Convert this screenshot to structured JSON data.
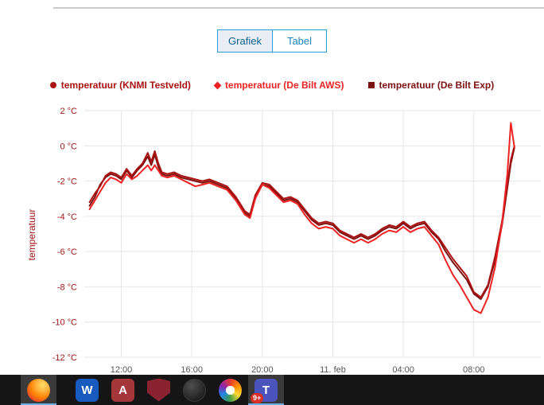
{
  "page": {
    "view_toggle": {
      "grafiek": "Grafiek",
      "tabel": "Tabel"
    },
    "accent_blue": "#259fd9"
  },
  "chart_data": {
    "type": "line",
    "title": "",
    "ylabel": "temperatuur",
    "ytick_color": "#a31515",
    "xtick_color": "#555555",
    "grid_color": "#e6e6e6",
    "legend_position": "top",
    "grid": true,
    "xlim": [
      9.9,
      35.8
    ],
    "ylim": [
      -12,
      2
    ],
    "x_unit": "hour of day (24 = 11 feb 00:00)",
    "yticks": [
      {
        "value": 2,
        "label": "2 °C"
      },
      {
        "value": 0,
        "label": "0 °C"
      },
      {
        "value": -2,
        "label": "-2 °C"
      },
      {
        "value": -4,
        "label": "-4 °C"
      },
      {
        "value": -6,
        "label": "-6 °C"
      },
      {
        "value": -8,
        "label": "-8 °C"
      },
      {
        "value": -10,
        "label": "-10 °C"
      },
      {
        "value": -12,
        "label": "-12 °C"
      }
    ],
    "xticks": [
      {
        "value": 12,
        "label": "12:00"
      },
      {
        "value": 16,
        "label": "16:00"
      },
      {
        "value": 20,
        "label": "20:00"
      },
      {
        "value": 24,
        "label": "11. feb"
      },
      {
        "value": 28,
        "label": "04:00"
      },
      {
        "value": 32,
        "label": "08:00"
      }
    ],
    "x": [
      10.2,
      10.5,
      10.8,
      11.1,
      11.4,
      11.7,
      12.0,
      12.3,
      12.6,
      12.9,
      13.2,
      13.5,
      13.7,
      13.9,
      14.1,
      14.3,
      14.6,
      15.0,
      15.4,
      15.8,
      16.2,
      16.6,
      17.0,
      17.5,
      18.0,
      18.5,
      19.0,
      19.3,
      19.6,
      20.0,
      20.4,
      20.8,
      21.2,
      21.6,
      22.0,
      22.4,
      22.8,
      23.2,
      23.6,
      24.0,
      24.4,
      24.8,
      25.2,
      25.6,
      26.0,
      26.4,
      26.8,
      27.2,
      27.6,
      28.0,
      28.4,
      28.8,
      29.2,
      29.6,
      30.0,
      30.4,
      30.8,
      31.2,
      31.6,
      32.0,
      32.4,
      32.8,
      33.2,
      33.6,
      33.9,
      34.1,
      34.3
    ],
    "series": [
      {
        "name": "temperatuur (KNMI Testveld)",
        "color": "#aa1111",
        "marker": "circle",
        "values": [
          -3.2,
          -2.7,
          -2.3,
          -1.7,
          -1.5,
          -1.6,
          -1.8,
          -1.3,
          -1.7,
          -1.3,
          -1.0,
          -0.4,
          -0.9,
          -0.3,
          -1.0,
          -1.5,
          -1.6,
          -1.5,
          -1.7,
          -1.8,
          -1.9,
          -2.0,
          -1.9,
          -2.1,
          -2.3,
          -2.9,
          -3.7,
          -3.9,
          -2.8,
          -2.1,
          -2.2,
          -2.6,
          -3.0,
          -2.9,
          -3.1,
          -3.6,
          -4.1,
          -4.4,
          -4.3,
          -4.4,
          -4.8,
          -5.0,
          -5.2,
          -5.0,
          -5.2,
          -5.0,
          -4.7,
          -4.5,
          -4.6,
          -4.3,
          -4.6,
          -4.4,
          -4.3,
          -4.8,
          -5.2,
          -5.8,
          -6.4,
          -6.9,
          -7.4,
          -8.3,
          -8.6,
          -7.9,
          -6.3,
          -4.3,
          -2.2,
          -0.8,
          0.0
        ]
      },
      {
        "name": "temperatuur (De Bilt AWS)",
        "color": "#ee2222",
        "marker": "diamond",
        "values": [
          -3.6,
          -3.1,
          -2.6,
          -2.1,
          -1.8,
          -1.9,
          -2.1,
          -1.6,
          -1.9,
          -1.7,
          -1.4,
          -1.1,
          -1.4,
          -1.1,
          -1.4,
          -1.7,
          -1.8,
          -1.7,
          -1.9,
          -2.1,
          -2.3,
          -2.2,
          -2.1,
          -2.3,
          -2.5,
          -3.1,
          -3.9,
          -4.1,
          -3.0,
          -2.2,
          -2.4,
          -2.8,
          -3.2,
          -3.1,
          -3.3,
          -3.9,
          -4.4,
          -4.7,
          -4.6,
          -4.7,
          -5.1,
          -5.3,
          -5.5,
          -5.3,
          -5.5,
          -5.3,
          -5.0,
          -4.8,
          -4.9,
          -4.6,
          -4.9,
          -4.7,
          -4.6,
          -5.1,
          -5.6,
          -6.5,
          -7.3,
          -7.9,
          -8.6,
          -9.3,
          -9.5,
          -8.6,
          -6.9,
          -4.4,
          -1.6,
          1.3,
          -0.1
        ]
      },
      {
        "name": "temperatuur (De Bilt Exp)",
        "color": "#7d1010",
        "marker": "square",
        "values": [
          -3.4,
          -2.9,
          -2.2,
          -1.8,
          -1.6,
          -1.7,
          -1.9,
          -1.4,
          -1.8,
          -1.4,
          -1.1,
          -0.6,
          -1.1,
          -0.5,
          -1.2,
          -1.6,
          -1.7,
          -1.6,
          -1.8,
          -1.9,
          -2.0,
          -2.1,
          -2.0,
          -2.2,
          -2.4,
          -3.0,
          -3.8,
          -4.0,
          -2.9,
          -2.2,
          -2.3,
          -2.7,
          -3.1,
          -3.0,
          -3.2,
          -3.7,
          -4.2,
          -4.5,
          -4.4,
          -4.5,
          -4.9,
          -5.1,
          -5.3,
          -5.1,
          -5.3,
          -5.1,
          -4.8,
          -4.6,
          -4.7,
          -4.4,
          -4.7,
          -4.5,
          -4.4,
          -4.9,
          -5.3,
          -6.0,
          -6.6,
          -7.1,
          -7.6,
          -8.4,
          -8.7,
          -8.0,
          -6.5,
          -4.5,
          -2.4,
          -1.0,
          -0.1
        ]
      }
    ]
  },
  "taskbar": {
    "icons": [
      {
        "name": "firefox",
        "active": true
      },
      {
        "name": "word",
        "glyph": "W",
        "color": "#185abd"
      },
      {
        "name": "access",
        "glyph": "A",
        "color": "#a4373a"
      },
      {
        "name": "shield",
        "color": "#8a2331"
      },
      {
        "name": "edge"
      },
      {
        "name": "paint"
      },
      {
        "name": "teams",
        "glyph": "T",
        "color": "#4b53bc",
        "badge": "9+",
        "active": true
      }
    ]
  }
}
